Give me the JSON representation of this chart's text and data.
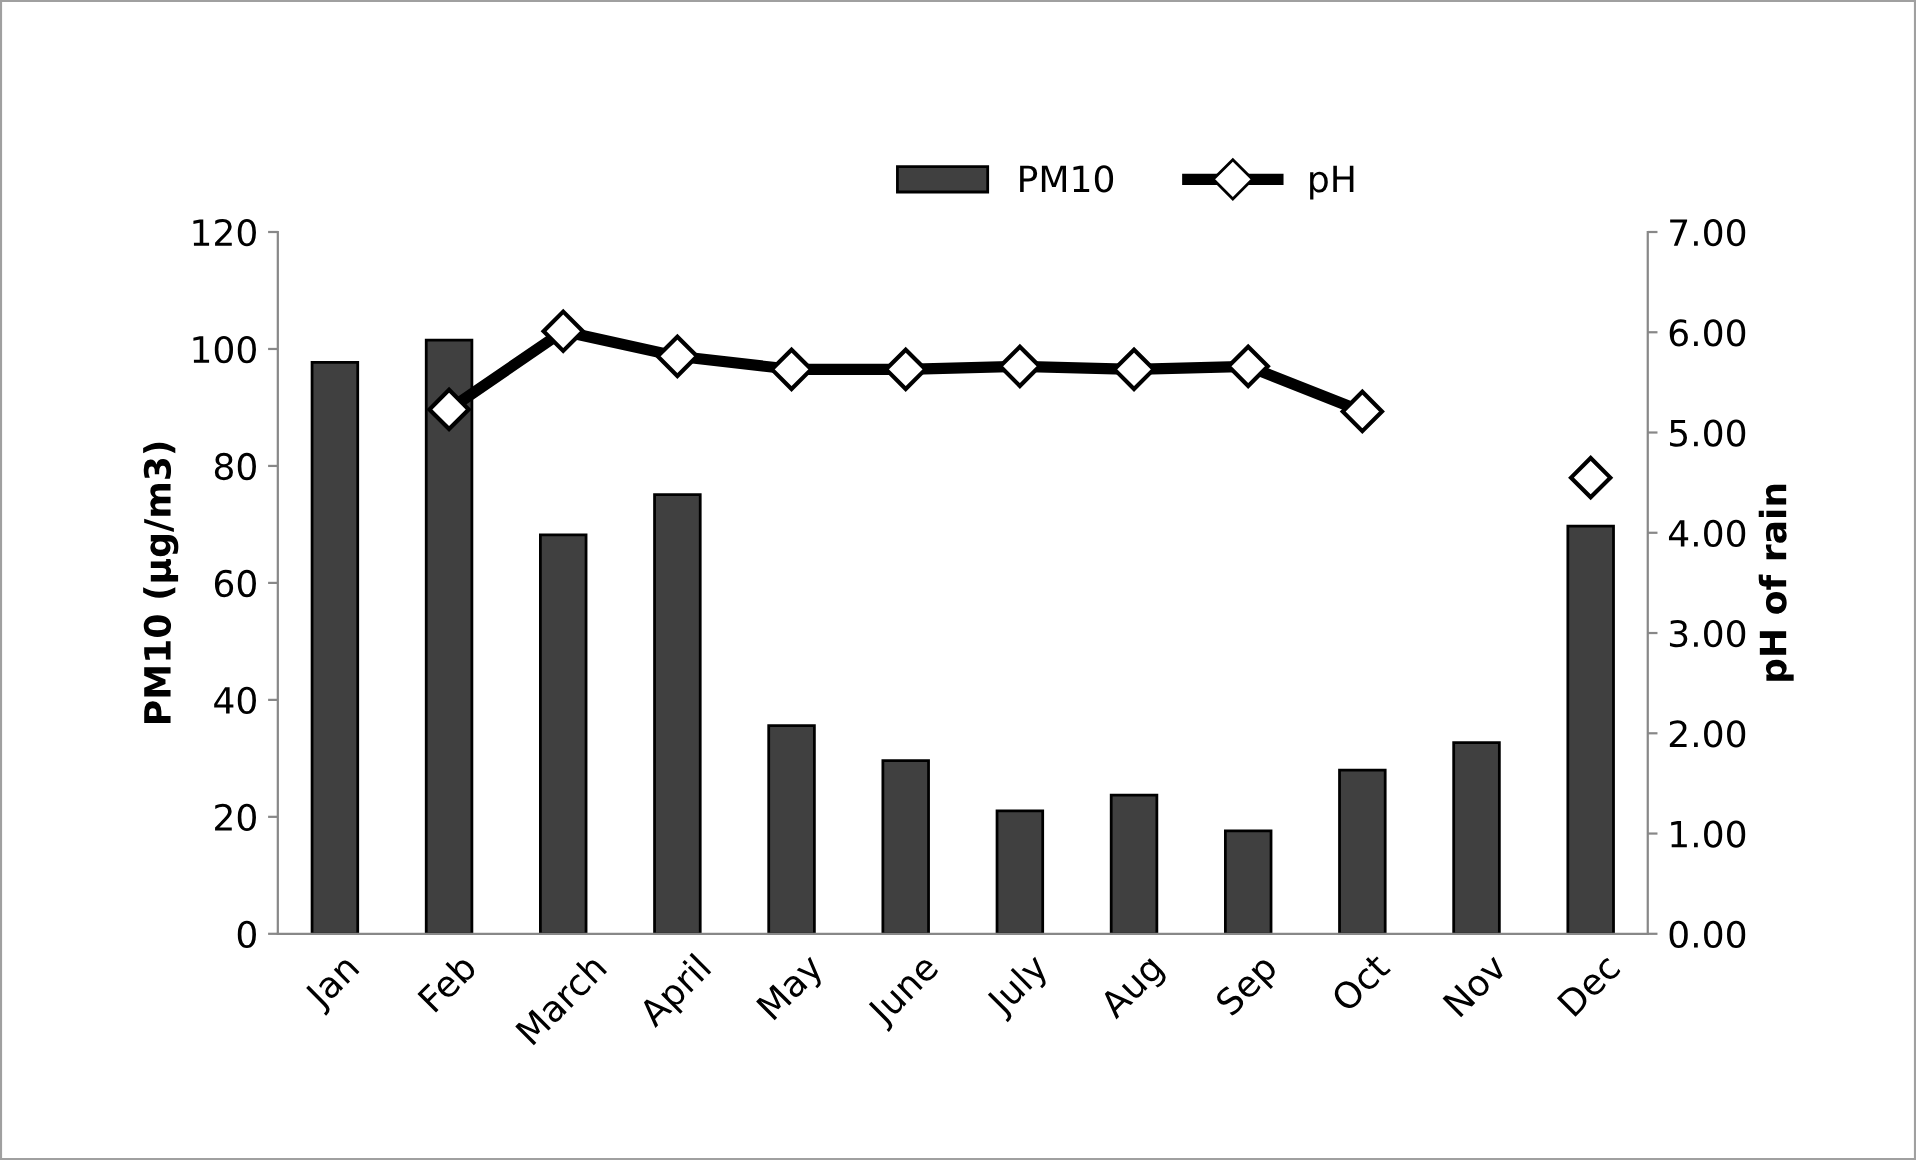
{
  "chart_data": {
    "type": "bar",
    "categories": [
      "Jan",
      "Feb",
      "March",
      "April",
      "May",
      "June",
      "July",
      "Aug",
      "Sep",
      "Oct",
      "Nov",
      "Dec"
    ],
    "series": [
      {
        "name": "PM10",
        "color": "#404040",
        "values": [
          97.7,
          101.5,
          68.2,
          75.1,
          35.6,
          29.6,
          21.0,
          23.7,
          17.6,
          28.0,
          32.7,
          69.7
        ]
      },
      {
        "name": "pH",
        "type": "line",
        "axis": "y2",
        "color": "#000000",
        "marker": "diamond",
        "values": [
          null,
          5.23,
          6.01,
          5.76,
          5.63,
          5.63,
          5.66,
          5.63,
          5.66,
          5.21,
          null,
          4.55
        ]
      }
    ],
    "ylabel": "PM10 (µg/m3)",
    "y2label": "pH of rain",
    "ylim": [
      0,
      120
    ],
    "yticks": [
      0,
      20,
      40,
      60,
      80,
      100,
      120
    ],
    "y2lim": [
      0,
      7
    ],
    "y2ticks": [
      {
        "value": 0,
        "label": "0.00"
      },
      {
        "value": 1,
        "label": "1.00"
      },
      {
        "value": 2,
        "label": "2.00"
      },
      {
        "value": 3,
        "label": "3.00"
      },
      {
        "value": 4,
        "label": "4.00"
      },
      {
        "value": 5,
        "label": "5.00"
      },
      {
        "value": 6,
        "label": "6.00"
      },
      {
        "value": 7,
        "label": "7.00"
      }
    ],
    "grid": false,
    "legend": "top"
  }
}
